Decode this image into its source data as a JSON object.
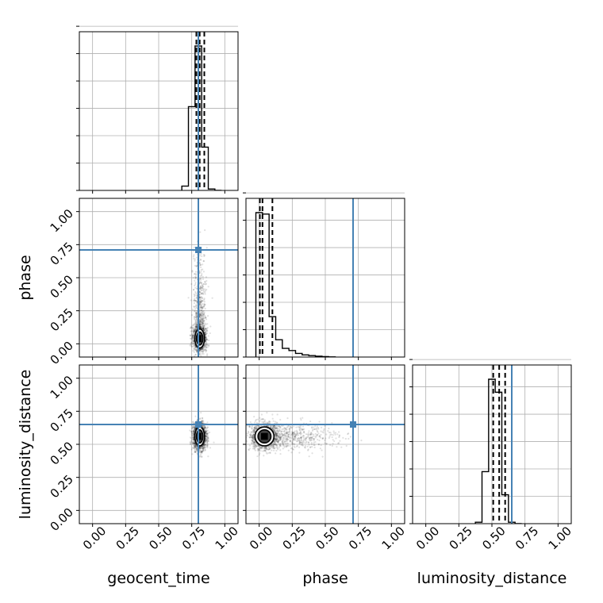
{
  "chart_data": {
    "type": "corner",
    "parameters": [
      "geocent_time",
      "phase",
      "luminosity_distance"
    ],
    "tick_labels": [
      "0.00",
      "0.25",
      "0.50",
      "0.75",
      "1.00"
    ],
    "tick_values": [
      0,
      0.25,
      0.5,
      0.75,
      1.0
    ],
    "axis_range": [
      -0.1,
      1.1
    ],
    "grid": true,
    "truth_values": {
      "geocent_time": 0.8,
      "phase": 0.71,
      "luminosity_distance": 0.65
    },
    "colors": {
      "truth": "#4682b4",
      "histogram": "#000000",
      "samples": "#000000",
      "grid": "#b0b0b0"
    },
    "marginals": [
      {
        "parameter": "geocent_time",
        "bin_edges": [
          0.675,
          0.725,
          0.775,
          0.825,
          0.875,
          0.925,
          0.975
        ],
        "counts": [
          0.03,
          0.58,
          1.0,
          0.3,
          0.01,
          0.0
        ],
        "quantiles": [
          0.785,
          0.81,
          0.845
        ]
      },
      {
        "parameter": "phase",
        "bin_edges": [
          -0.025,
          0.025,
          0.075,
          0.125,
          0.175,
          0.225,
          0.275,
          0.325,
          0.375,
          0.425,
          0.475,
          0.525,
          0.575
        ],
        "counts": [
          1.0,
          0.99,
          0.28,
          0.12,
          0.06,
          0.045,
          0.025,
          0.015,
          0.01,
          0.006,
          0.003,
          0.001
        ],
        "quantiles": [
          0.005,
          0.025,
          0.1
        ]
      },
      {
        "parameter": "luminosity_distance",
        "bin_edges": [
          0.375,
          0.425,
          0.475,
          0.525,
          0.575,
          0.625,
          0.675,
          0.725
        ],
        "counts": [
          0.01,
          0.36,
          1.0,
          0.91,
          0.2,
          0.01,
          0.0
        ],
        "quantiles": [
          0.51,
          0.555,
          0.6
        ]
      }
    ],
    "sample_clouds": [
      {
        "x": "geocent_time",
        "y": "phase",
        "x_center": 0.81,
        "y_center": 0.04,
        "x_spread": 0.025,
        "y_spread": 0.05,
        "y_skew": "tail toward higher phase, up to about 0.8"
      },
      {
        "x": "geocent_time",
        "y": "luminosity_distance",
        "x_center": 0.81,
        "y_center": 0.56,
        "x_spread": 0.025,
        "y_spread": 0.05
      },
      {
        "x": "phase",
        "y": "luminosity_distance",
        "x_center": 0.04,
        "y_center": 0.56,
        "x_spread": 0.05,
        "y_spread": 0.05,
        "x_skew": "tail toward higher phase, up to about 0.6"
      }
    ]
  }
}
